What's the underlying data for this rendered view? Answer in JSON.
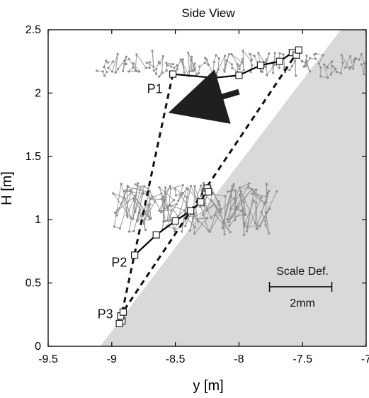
{
  "chart_data": {
    "type": "line",
    "title": "Side View",
    "xlabel": "y [m]",
    "ylabel": "H [m]",
    "xlim": [
      -9.5,
      -7
    ],
    "ylim": [
      0,
      2.5
    ],
    "x_ticks": [
      -9.5,
      -9,
      -8.5,
      -8,
      -7.5,
      -7
    ],
    "y_ticks": [
      0,
      0.5,
      1,
      1.5,
      2,
      2.5
    ],
    "x_tick_labels": [
      "-9.5",
      "-9",
      "-8.5",
      "-8",
      "-7.5",
      "-7"
    ],
    "y_tick_labels": [
      "0",
      "0.5",
      "1",
      "1.5",
      "2",
      "2.5"
    ],
    "grid": false,
    "background_region": {
      "shape": "polygon",
      "points": [
        [
          -9.09,
          0
        ],
        [
          -7.2,
          2.5
        ],
        [
          -7,
          2.5
        ],
        [
          -7,
          0
        ]
      ],
      "color": "#d9d9d9"
    },
    "clouds": [
      {
        "name": "P1",
        "x": [
          -9.1,
          -7.0
        ],
        "y": [
          2.08,
          2.38
        ],
        "color": "#8f8f8f"
      },
      {
        "name": "P2",
        "x": [
          -8.95,
          -7.75
        ],
        "y": [
          0.78,
          1.42
        ],
        "color": "#8f8f8f"
      }
    ],
    "main_series": {
      "color": "#000000",
      "marker": "square",
      "segments": [
        [
          [
            -8.52,
            2.15
          ],
          [
            -8.2,
            2.12
          ],
          [
            -8.0,
            2.14
          ],
          [
            -7.83,
            2.22
          ],
          [
            -7.68,
            2.25
          ],
          [
            -7.58,
            2.32
          ],
          [
            -7.55,
            2.3
          ],
          [
            -7.53,
            2.34
          ]
        ],
        [
          [
            -8.82,
            0.72
          ],
          [
            -8.65,
            0.88
          ],
          [
            -8.5,
            0.99
          ],
          [
            -8.38,
            1.07
          ],
          [
            -8.3,
            1.14
          ],
          [
            -8.26,
            1.22
          ],
          [
            -8.25,
            1.25
          ],
          [
            -8.24,
            1.22
          ]
        ],
        [
          [
            -8.92,
            0.2
          ],
          [
            -8.94,
            0.18
          ],
          [
            -8.93,
            0.24
          ],
          [
            -8.91,
            0.27
          ]
        ]
      ]
    },
    "dashed_lines": [
      [
        [
          -8.52,
          2.15
        ],
        [
          -8.92,
          0.26
        ]
      ],
      [
        [
          -7.53,
          2.34
        ],
        [
          -8.92,
          0.26
        ]
      ]
    ],
    "labels": [
      {
        "text": "P1",
        "x": -8.6,
        "y": 2.0,
        "anchor": "end"
      },
      {
        "text": "P2",
        "x": -8.88,
        "y": 0.63,
        "anchor": "end"
      },
      {
        "text": "P3",
        "x": -8.99,
        "y": 0.22,
        "anchor": "end"
      }
    ],
    "arrow": {
      "from": [
        -8.0,
        2.01
      ],
      "to": [
        -8.47,
        1.87
      ],
      "color": "#1f1f1f"
    },
    "scale_bar": {
      "title": "Scale Def.",
      "value_label": "2mm",
      "x_start": -7.76,
      "x_end": -7.27,
      "y": 0.47
    },
    "colors": {
      "axis": "#000000",
      "cloud": "#8f8f8f",
      "region": "#d9d9d9",
      "main_line": "#000000",
      "marker_fill": "#ffffff"
    }
  }
}
